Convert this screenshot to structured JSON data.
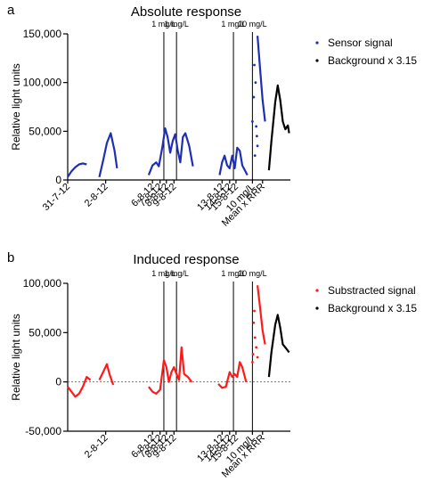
{
  "chart_data": [
    {
      "type": "line",
      "panel_label": "a",
      "title": "Absolute response",
      "ylabel": "Relative light units",
      "xlabel": "",
      "ylim": [
        0,
        150000
      ],
      "yticks": [
        0,
        50000,
        100000,
        150000
      ],
      "ytick_labels": [
        "0",
        "50,000",
        "100,000",
        "150,000"
      ],
      "xticks": [
        {
          "x": 0,
          "label": "31-7-12"
        },
        {
          "x": 3,
          "label": "2-8-12"
        },
        {
          "x": 6.7,
          "label": "6-8-12"
        },
        {
          "x": 7.3,
          "label": "7-8-12"
        },
        {
          "x": 7.8,
          "label": "8-8-12"
        },
        {
          "x": 8.4,
          "label": "9-8-12"
        },
        {
          "x": 12.2,
          "label": "13-8-12"
        },
        {
          "x": 12.8,
          "label": "14-8-12"
        },
        {
          "x": 13.3,
          "label": "15-8-12"
        },
        {
          "x": 14.6,
          "label": "10 mg/L"
        },
        {
          "x": 15.4,
          "label": "Mean x RRR"
        }
      ],
      "annotations": [
        {
          "x": 7.6,
          "text": "1 mg/L"
        },
        {
          "x": 8.6,
          "text": "1 mg/L"
        },
        {
          "x": 13.1,
          "text": "1 mg/L"
        },
        {
          "x": 14.6,
          "text": "10 mg/L"
        }
      ],
      "legend": "top-right",
      "series": [
        {
          "name": "Sensor signal",
          "color": "#1f2fb3",
          "style": "line",
          "segments": [
            [
              [
                0,
                3000
              ],
              [
                0.3,
                9000
              ],
              [
                0.6,
                13000
              ],
              [
                0.9,
                16000
              ],
              [
                1.2,
                17000
              ],
              [
                1.5,
                16000
              ]
            ],
            [
              [
                2.5,
                3000
              ],
              [
                2.8,
                20000
              ],
              [
                3.1,
                38000
              ],
              [
                3.4,
                48000
              ],
              [
                3.7,
                30000
              ],
              [
                3.9,
                12000
              ]
            ],
            [
              [
                6.4,
                5000
              ],
              [
                6.7,
                15000
              ],
              [
                7.0,
                18000
              ],
              [
                7.2,
                14000
              ],
              [
                7.5,
                35000
              ],
              [
                7.7,
                53000
              ],
              [
                7.9,
                44000
              ],
              [
                8.1,
                28000
              ],
              [
                8.3,
                40000
              ],
              [
                8.5,
                47000
              ],
              [
                8.7,
                30000
              ],
              [
                8.9,
                18000
              ],
              [
                9.1,
                44000
              ],
              [
                9.3,
                48000
              ],
              [
                9.6,
                35000
              ],
              [
                9.9,
                14000
              ]
            ],
            [
              [
                12.0,
                5000
              ],
              [
                12.2,
                18000
              ],
              [
                12.4,
                25000
              ],
              [
                12.6,
                15000
              ],
              [
                12.8,
                12000
              ],
              [
                13.0,
                25000
              ],
              [
                13.2,
                12000
              ],
              [
                13.4,
                33000
              ],
              [
                13.6,
                30000
              ],
              [
                13.8,
                15000
              ],
              [
                14.0,
                10000
              ],
              [
                14.2,
                5000
              ]
            ],
            [
              [
                15.0,
                148000
              ],
              [
                15.2,
                115000
              ],
              [
                15.4,
                82000
              ],
              [
                15.6,
                60000
              ]
            ]
          ],
          "points": [
            [
              14.6,
              60000
            ],
            [
              14.7,
              85000
            ],
            [
              14.8,
              25000
            ],
            [
              14.9,
              55000
            ],
            [
              14.95,
              45000
            ],
            [
              15.0,
              35000
            ],
            [
              14.75,
              118000
            ],
            [
              14.85,
              100000
            ]
          ]
        },
        {
          "name": "Background x 3.15",
          "color": "#000000",
          "style": "line",
          "segments": [
            [
              [
                15.9,
                10000
              ],
              [
                16.1,
                40000
              ],
              [
                16.4,
                80000
              ],
              [
                16.6,
                97000
              ],
              [
                16.8,
                82000
              ],
              [
                17.0,
                60000
              ],
              [
                17.2,
                52000
              ],
              [
                17.4,
                56000
              ],
              [
                17.5,
                48000
              ]
            ]
          ],
          "points": []
        }
      ]
    },
    {
      "type": "line",
      "panel_label": "b",
      "title": "Induced response",
      "ylabel": "Relative light units",
      "xlabel": "",
      "ylim": [
        -50000,
        100000
      ],
      "yticks": [
        -50000,
        0,
        50000,
        100000
      ],
      "ytick_labels": [
        "-50,000",
        "0",
        "50,000",
        "100,000"
      ],
      "zero_line": true,
      "xticks": [
        {
          "x": 3,
          "label": "2-8-12"
        },
        {
          "x": 6.7,
          "label": "6-8-12"
        },
        {
          "x": 7.3,
          "label": "7-8-12"
        },
        {
          "x": 7.8,
          "label": "8-8-12"
        },
        {
          "x": 8.4,
          "label": "9-8-12"
        },
        {
          "x": 12.2,
          "label": "13-8-12"
        },
        {
          "x": 12.8,
          "label": "14-8-12"
        },
        {
          "x": 13.3,
          "label": "15-8-12"
        },
        {
          "x": 14.6,
          "label": "10 mg/L"
        },
        {
          "x": 15.4,
          "label": "Mean x RRR"
        }
      ],
      "annotations": [
        {
          "x": 7.6,
          "text": "1 mg/L"
        },
        {
          "x": 8.6,
          "text": "1 mg/L"
        },
        {
          "x": 13.1,
          "text": "1 mg/L"
        },
        {
          "x": 14.6,
          "text": "10 mg/L"
        }
      ],
      "legend": "top-right",
      "series": [
        {
          "name": "Substracted signal",
          "color": "#ff1a1a",
          "style": "line",
          "segments": [
            [
              [
                0,
                -5000
              ],
              [
                0.3,
                -10000
              ],
              [
                0.6,
                -15000
              ],
              [
                0.9,
                -12000
              ],
              [
                1.2,
                -5000
              ],
              [
                1.5,
                5000
              ],
              [
                1.8,
                2000
              ]
            ],
            [
              [
                2.5,
                2000
              ],
              [
                2.8,
                10000
              ],
              [
                3.1,
                18000
              ],
              [
                3.3,
                8000
              ],
              [
                3.6,
                -3000
              ]
            ],
            [
              [
                6.4,
                -5000
              ],
              [
                6.7,
                -10000
              ],
              [
                7.0,
                -12000
              ],
              [
                7.3,
                -8000
              ],
              [
                7.6,
                22000
              ],
              [
                7.8,
                15000
              ],
              [
                8.0,
                0
              ],
              [
                8.2,
                10000
              ],
              [
                8.4,
                15000
              ],
              [
                8.6,
                8000
              ],
              [
                8.8,
                2000
              ],
              [
                9.0,
                35000
              ],
              [
                9.2,
                8000
              ],
              [
                9.5,
                5000
              ],
              [
                9.8,
                0
              ]
            ],
            [
              [
                11.9,
                -2000
              ],
              [
                12.2,
                -6000
              ],
              [
                12.5,
                -5000
              ],
              [
                12.8,
                10000
              ],
              [
                13.0,
                5000
              ],
              [
                13.2,
                8000
              ],
              [
                13.4,
                5000
              ],
              [
                13.6,
                20000
              ],
              [
                13.8,
                15000
              ],
              [
                14.1,
                0
              ]
            ],
            [
              [
                15.0,
                98000
              ],
              [
                15.2,
                76000
              ],
              [
                15.4,
                52000
              ],
              [
                15.6,
                38000
              ]
            ]
          ],
          "points": [
            [
              14.6,
              20000
            ],
            [
              14.7,
              60000
            ],
            [
              14.75,
              72000
            ],
            [
              14.8,
              45000
            ],
            [
              14.9,
              35000
            ],
            [
              15.0,
              25000
            ],
            [
              14.65,
              28000
            ]
          ]
        },
        {
          "name": "Background x 3.15",
          "color": "#000000",
          "style": "line",
          "segments": [
            [
              [
                15.9,
                5000
              ],
              [
                16.1,
                30000
              ],
              [
                16.4,
                58000
              ],
              [
                16.6,
                68000
              ],
              [
                16.8,
                55000
              ],
              [
                17.0,
                38000
              ],
              [
                17.2,
                35000
              ],
              [
                17.5,
                30000
              ]
            ]
          ],
          "points": []
        }
      ]
    }
  ]
}
